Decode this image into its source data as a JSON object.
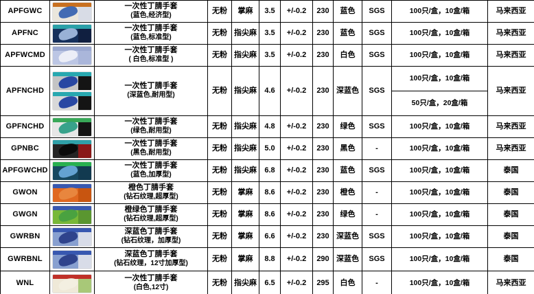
{
  "table": {
    "rows": [
      {
        "code": "APFGWC",
        "name": "一次性丁腈手套",
        "subtitle": "(蓝色,经济型)",
        "powder": "无粉",
        "texture": "掌麻",
        "weight": "3.5",
        "tolerance": "+/-0.2",
        "length": "230",
        "color": "蓝色",
        "cert": "SGS",
        "packaging": [
          "100只/盒，10盒/箱"
        ],
        "origin": "马来西亚",
        "images": [
          [
            "#c87020",
            "#eae6dc",
            "#d8dce6",
            "#3a64b0"
          ]
        ]
      },
      {
        "code": "APFNC",
        "name": "一次性丁腈手套",
        "subtitle": "(蓝色,标准型)",
        "powder": "无粉",
        "texture": "指尖麻",
        "weight": "3.5",
        "tolerance": "+/-0.2",
        "length": "230",
        "color": "蓝色",
        "cert": "SGS",
        "packaging": [
          "100只/盒，10盒/箱"
        ],
        "origin": "马来西亚",
        "images": [
          [
            "#2aa0a8",
            "#16305c",
            "#101f40",
            "#a0b8dc"
          ]
        ]
      },
      {
        "code": "APFWCMD",
        "name": "一次性丁腈手套",
        "subtitle": "( 白色,标准型 )",
        "powder": "无粉",
        "texture": "指尖麻",
        "weight": "3.5",
        "tolerance": "+/-0.2",
        "length": "230",
        "color": "白色",
        "cert": "SGS",
        "packaging": [
          "100只/盒，10盒/箱"
        ],
        "origin": "马来西亚",
        "images": [
          [
            "#9aa8d0",
            "#bcc6e4",
            "#aab6da",
            "#eef0f8"
          ]
        ]
      },
      {
        "code": "APFNCHD",
        "name": "一次性丁腈手套",
        "subtitle": "(深蓝色,耐用型)",
        "powder": "无粉",
        "texture": "指尖麻",
        "weight": "4.6",
        "tolerance": "+/-0.2",
        "length": "230",
        "color": "深蓝色",
        "cert": "SGS",
        "packaging": [
          "100只/盒，10盒/箱",
          "50只/盒，20盒/箱"
        ],
        "origin": "马来西亚",
        "images": [
          [
            "#28a8b0",
            "#c4c4c4",
            "#141414",
            "#2040a0"
          ],
          [
            "#28a8b0",
            "#d8d8d8",
            "#141414",
            "#2040a0"
          ]
        ]
      },
      {
        "code": "GPFNCHD",
        "name": "一次性丁腈手套",
        "subtitle": "(绿色,耐用型)",
        "powder": "无粉",
        "texture": "指尖麻",
        "weight": "4.8",
        "tolerance": "+/-0.2",
        "length": "230",
        "color": "绿色",
        "cert": "SGS",
        "packaging": [
          "100只/盒，10盒/箱"
        ],
        "origin": "马来西亚",
        "images": [
          [
            "#38a858",
            "#e6e6e6",
            "#141414",
            "#2e9e86"
          ]
        ]
      },
      {
        "code": "GPNBC",
        "name": "一次性丁腈手套",
        "subtitle": "(黑色,耐用型)",
        "powder": "无粉",
        "texture": "指尖麻",
        "weight": "5.0",
        "tolerance": "+/-0.2",
        "length": "230",
        "color": "黑色",
        "cert": "-",
        "packaging": [
          "100只/盒，10盒/箱"
        ],
        "origin": "马来西亚",
        "images": [
          [
            "#30a0a8",
            "#242424",
            "#8a1818",
            "#0a0a0a"
          ]
        ]
      },
      {
        "code": "APFGWCHD",
        "name": "一次性丁腈手套",
        "subtitle": "(蓝色,加厚型)",
        "powder": "无粉",
        "texture": "指尖麻",
        "weight": "6.8",
        "tolerance": "+/-0.2",
        "length": "230",
        "color": "蓝色",
        "cert": "SGS",
        "packaging": [
          "100只/盒，10盒/箱"
        ],
        "origin": "泰国",
        "images": [
          [
            "#28b050",
            "#174860",
            "#123a50",
            "#68a8d8"
          ]
        ]
      },
      {
        "code": "GWON",
        "name": "橙色丁腈手套",
        "subtitle": "(钻石纹理,超厚型)",
        "powder": "无粉",
        "texture": "掌麻",
        "weight": "8.6",
        "tolerance": "+/-0.2",
        "length": "230",
        "color": "橙色",
        "cert": "-",
        "packaging": [
          "100只/盒，10盒/箱"
        ],
        "origin": "泰国",
        "images": [
          [
            "#3858b0",
            "#e06820",
            "#c85510",
            "#e88840"
          ]
        ]
      },
      {
        "code": "GWGN",
        "name": "橙绿色丁腈手套",
        "subtitle": "(钻石纹理,超厚型)",
        "powder": "无粉",
        "texture": "掌麻",
        "weight": "8.6",
        "tolerance": "+/-0.2",
        "length": "230",
        "color": "绿色",
        "cert": "-",
        "packaging": [
          "100只/盒，10盒/箱"
        ],
        "origin": "泰国",
        "images": [
          [
            "#3858b0",
            "#78b838",
            "#5a9630",
            "#48a040"
          ]
        ]
      },
      {
        "code": "GWRBN",
        "name": "深蓝色丁腈手套",
        "subtitle": "(钻石纹理，加厚型)",
        "powder": "无粉",
        "texture": "掌麻",
        "weight": "6.6",
        "tolerance": "+/-0.2",
        "length": "230",
        "color": "深蓝色",
        "cert": "SGS",
        "packaging": [
          "100只/盒，10盒/箱"
        ],
        "origin": "泰国",
        "images": [
          [
            "#3858b0",
            "#88a0d0",
            "#d8dce8",
            "#2a3e88"
          ]
        ]
      },
      {
        "code": "GWRBNL",
        "name": "深蓝色丁腈手套",
        "subtitle": "(钻石纹理，12寸加厚型)",
        "powder": "无粉",
        "texture": "掌麻",
        "weight": "8.8",
        "tolerance": "+/-0.2",
        "length": "290",
        "color": "深蓝色",
        "cert": "SGS",
        "packaging": [
          "100只/盒，10盒/箱"
        ],
        "origin": "泰国",
        "images": [
          [
            "#3858b0",
            "#88a0d0",
            "#d8dce8",
            "#2a3e88"
          ]
        ]
      },
      {
        "code": "WNL",
        "name": "一次性丁腈手套",
        "subtitle": "(白色,12寸)",
        "powder": "无粉",
        "texture": "指尖麻",
        "weight": "6.5",
        "tolerance": "+/-0.2",
        "length": "295",
        "color": "白色",
        "cert": "-",
        "packaging": [
          "100只/盒，10盒/箱"
        ],
        "origin": "马来西亚",
        "images": [
          [
            "#c03028",
            "#efe9d8",
            "#a8c878",
            "#f2efe2"
          ]
        ]
      }
    ]
  }
}
